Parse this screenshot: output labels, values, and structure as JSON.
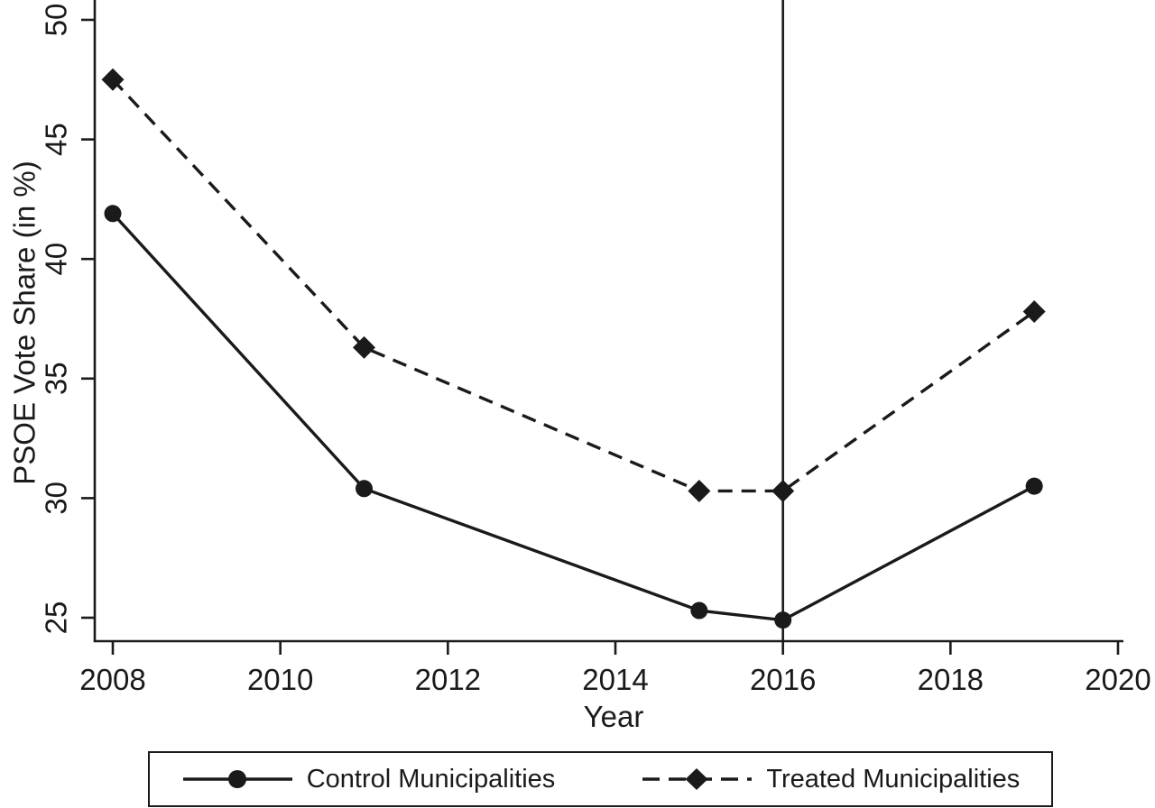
{
  "chart_data": {
    "type": "line",
    "title": "",
    "xlabel": "Year",
    "ylabel": "PSOE Vote Share (in %)",
    "x_ticks": [
      2008,
      2010,
      2012,
      2014,
      2016,
      2018,
      2020
    ],
    "y_ticks": [
      25,
      30,
      35,
      40,
      45,
      50
    ],
    "xlim": [
      2007.8,
      2020.1
    ],
    "ylim": [
      24.0,
      50.8
    ],
    "grid": false,
    "legend_position": "bottom-boxed",
    "reference_line_x": 2016,
    "color": "#1a1a1a",
    "background": "#ffffff",
    "x": [
      2008,
      2011,
      2015,
      2016,
      2019
    ],
    "series": [
      {
        "name": "Control Municipalities",
        "marker": "circle",
        "line_style": "solid",
        "values": [
          41.9,
          30.4,
          25.3,
          24.9,
          30.5
        ]
      },
      {
        "name": "Treated Municipalities",
        "marker": "diamond",
        "line_style": "dashed",
        "values": [
          47.5,
          36.3,
          30.3,
          30.3,
          37.8
        ]
      }
    ]
  }
}
